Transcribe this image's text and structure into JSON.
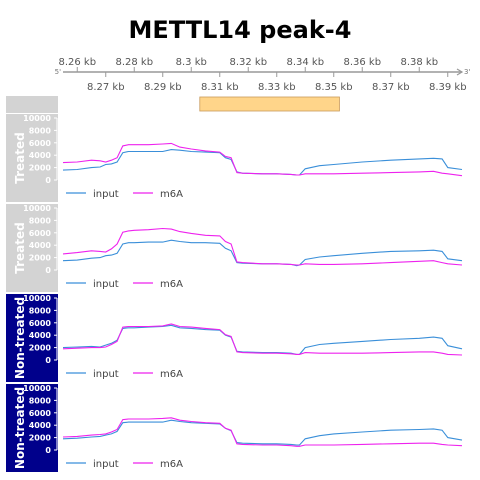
{
  "title": "METTL14 peak-4",
  "axis": {
    "start_label": "5'",
    "end_label": "3'",
    "upper_ticks": [
      "8.26 kb",
      "8.28 kb",
      "8.3 kb",
      "8.32 kb",
      "8.34 kb",
      "8.36 kb",
      "8.38 kb"
    ],
    "lower_ticks": [
      "8.27 kb",
      "8.29 kb",
      "8.31 kb",
      "8.33 kb",
      "8.35 kb",
      "8.37 kb",
      "8.39 kb"
    ]
  },
  "colors": {
    "input": "#3a8fd9",
    "m6A": "#ee22ee",
    "treated_panel": "#d3d3d3",
    "nontreated_panel": "#00008b",
    "peak": "#ffd58a"
  },
  "chart_data": {
    "type": "line",
    "x_unit": "kb",
    "xlim": [
      8.255,
      8.395
    ],
    "ylim": [
      0,
      10000
    ],
    "yticks": [
      "10000",
      "8000",
      "6000",
      "4000",
      "2000",
      "0"
    ],
    "peak_region": [
      8.303,
      8.352
    ],
    "x": [
      8.255,
      8.26,
      8.265,
      8.268,
      8.27,
      8.272,
      8.274,
      8.276,
      8.278,
      8.28,
      8.285,
      8.29,
      8.293,
      8.296,
      8.3,
      8.305,
      8.31,
      8.312,
      8.314,
      8.316,
      8.318,
      8.325,
      8.33,
      8.335,
      8.337,
      8.338,
      8.34,
      8.345,
      8.35,
      8.36,
      8.37,
      8.38,
      8.385,
      8.388,
      8.39,
      8.395
    ],
    "tracks": [
      {
        "label": "Treated",
        "series": [
          {
            "name": "input",
            "values": [
              1600,
              1700,
              2000,
              2100,
              2500,
              2600,
              2900,
              4400,
              4600,
              4600,
              4600,
              4600,
              4900,
              4800,
              4600,
              4500,
              4400,
              3600,
              3300,
              1300,
              1100,
              1000,
              1000,
              900,
              800,
              800,
              1800,
              2300,
              2500,
              2900,
              3200,
              3400,
              3500,
              3400,
              2000,
              1700
            ]
          },
          {
            "name": "m6A",
            "values": [
              2800,
              2900,
              3200,
              3100,
              2900,
              3200,
              3600,
              5500,
              5700,
              5700,
              5700,
              5800,
              5900,
              5300,
              5000,
              4700,
              4500,
              3800,
              3600,
              1200,
              1100,
              1000,
              1000,
              900,
              800,
              800,
              1000,
              1000,
              1000,
              1100,
              1200,
              1300,
              1400,
              1100,
              1000,
              700
            ]
          }
        ]
      },
      {
        "label": "Treated",
        "series": [
          {
            "name": "input",
            "values": [
              1500,
              1600,
              1900,
              2000,
              2300,
              2400,
              2700,
              4200,
              4400,
              4400,
              4500,
              4500,
              4800,
              4600,
              4400,
              4400,
              4300,
              3500,
              3100,
              1200,
              1100,
              1000,
              1000,
              900,
              700,
              800,
              1700,
              2100,
              2300,
              2700,
              3000,
              3100,
              3200,
              3000,
              1800,
              1500
            ]
          },
          {
            "name": "m6A",
            "values": [
              2600,
              2800,
              3100,
              3000,
              2900,
              3400,
              4200,
              6100,
              6300,
              6400,
              6500,
              6700,
              6600,
              6200,
              5900,
              5600,
              5500,
              4600,
              4200,
              1300,
              1200,
              1000,
              1000,
              900,
              800,
              800,
              1000,
              900,
              900,
              1000,
              1200,
              1400,
              1500,
              1200,
              1000,
              800
            ]
          }
        ]
      },
      {
        "label": "Non-treated",
        "series": [
          {
            "name": "input",
            "values": [
              2000,
              2100,
              2200,
              2100,
              2400,
              2700,
              3200,
              5100,
              5200,
              5200,
              5300,
              5400,
              5600,
              5200,
              5100,
              4900,
              4800,
              4000,
              3700,
              1400,
              1300,
              1200,
              1200,
              1100,
              900,
              900,
              2000,
              2500,
              2700,
              3000,
              3300,
              3500,
              3700,
              3500,
              2300,
              1800
            ]
          },
          {
            "name": "m6A",
            "values": [
              1800,
              1900,
              2000,
              2000,
              2100,
              2500,
              3000,
              5300,
              5400,
              5400,
              5400,
              5500,
              5800,
              5400,
              5300,
              5100,
              4900,
              4100,
              3800,
              1300,
              1200,
              1100,
              1100,
              1000,
              900,
              900,
              1200,
              1100,
              1100,
              1100,
              1200,
              1300,
              1300,
              1100,
              900,
              800
            ]
          }
        ]
      },
      {
        "label": "Non-treated",
        "series": [
          {
            "name": "input",
            "values": [
              1800,
              1900,
              2100,
              2200,
              2400,
              2600,
              3000,
              4400,
              4500,
              4500,
              4500,
              4500,
              4800,
              4600,
              4400,
              4300,
              4200,
              3500,
              3100,
              1200,
              1100,
              1000,
              1000,
              900,
              800,
              800,
              1800,
              2300,
              2600,
              2900,
              3200,
              3300,
              3400,
              3200,
              2000,
              1600
            ]
          },
          {
            "name": "m6A",
            "values": [
              2100,
              2200,
              2400,
              2500,
              2600,
              2900,
              3300,
              4900,
              5000,
              5000,
              5000,
              5100,
              5200,
              4800,
              4600,
              4400,
              4300,
              3500,
              3200,
              1000,
              900,
              800,
              800,
              700,
              600,
              600,
              800,
              800,
              800,
              900,
              1000,
              1100,
              1100,
              900,
              800,
              700
            ]
          }
        ]
      }
    ],
    "legend": [
      "input",
      "m6A"
    ]
  }
}
